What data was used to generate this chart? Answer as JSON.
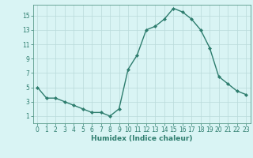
{
  "x": [
    0,
    1,
    2,
    3,
    4,
    5,
    6,
    7,
    8,
    9,
    10,
    11,
    12,
    13,
    14,
    15,
    16,
    17,
    18,
    19,
    20,
    21,
    22,
    23
  ],
  "y": [
    5,
    3.5,
    3.5,
    3,
    2.5,
    2,
    1.5,
    1.5,
    1,
    2,
    7.5,
    9.5,
    13,
    13.5,
    14.5,
    16,
    15.5,
    14.5,
    13,
    10.5,
    6.5,
    5.5,
    4.5,
    4
  ],
  "line_color": "#2e7d6e",
  "marker": "D",
  "marker_size": 2,
  "bg_color": "#d9f4f4",
  "grid_color": "#b8dada",
  "xlabel": "Humidex (Indice chaleur)",
  "xlim": [
    -0.5,
    23.5
  ],
  "ylim": [
    0,
    16.5
  ],
  "yticks": [
    1,
    3,
    5,
    7,
    9,
    11,
    13,
    15
  ],
  "xticks": [
    0,
    1,
    2,
    3,
    4,
    5,
    6,
    7,
    8,
    9,
    10,
    11,
    12,
    13,
    14,
    15,
    16,
    17,
    18,
    19,
    20,
    21,
    22,
    23
  ],
  "tick_label_size": 5.5,
  "xlabel_size": 6.5,
  "line_width": 1.0,
  "axis_color": "#2e7d6e",
  "spine_color": "#5a9a8a"
}
